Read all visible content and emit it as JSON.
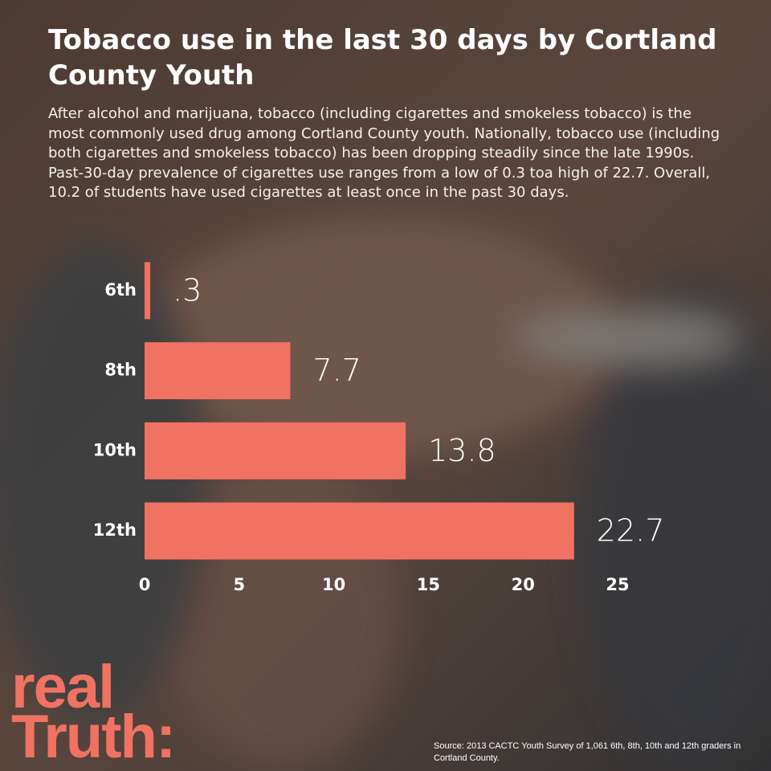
{
  "chart_data": {
    "type": "hbar",
    "title": "Tobacco use in the last 30 days by Cortland County Youth",
    "subtitle": "After alcohol and marijuana, tobacco (including cigarettes and smokeless tobacco) is the most commonly used drug among Cortland County youth. Nationally, tobacco use (including both cigarettes and smokeless tobacco) has been dropping steadily since the late 1990s. Past-30-day prevalence of cigarettes use ranges from a low of 0.3 toa high of 22.7. Overall, 10.2 of students have used cigarettes at least once in the past 30 days.",
    "categories": [
      "6th",
      "8th",
      "10th",
      "12th"
    ],
    "values": [
      0.3,
      7.7,
      13.8,
      22.7
    ],
    "value_labels": [
      ".3",
      "7.7",
      "13.8",
      "22.7"
    ],
    "color": "#f07262",
    "xlim": [
      0,
      25
    ],
    "xticks": [
      0,
      5,
      10,
      15,
      20,
      25
    ],
    "grid": false,
    "logo": [
      "real",
      "Truth:"
    ],
    "source": "Source: 2013 CACTC Youth Survey of 1,061 6th, 8th, 10th and 12th graders in Cortland County."
  }
}
